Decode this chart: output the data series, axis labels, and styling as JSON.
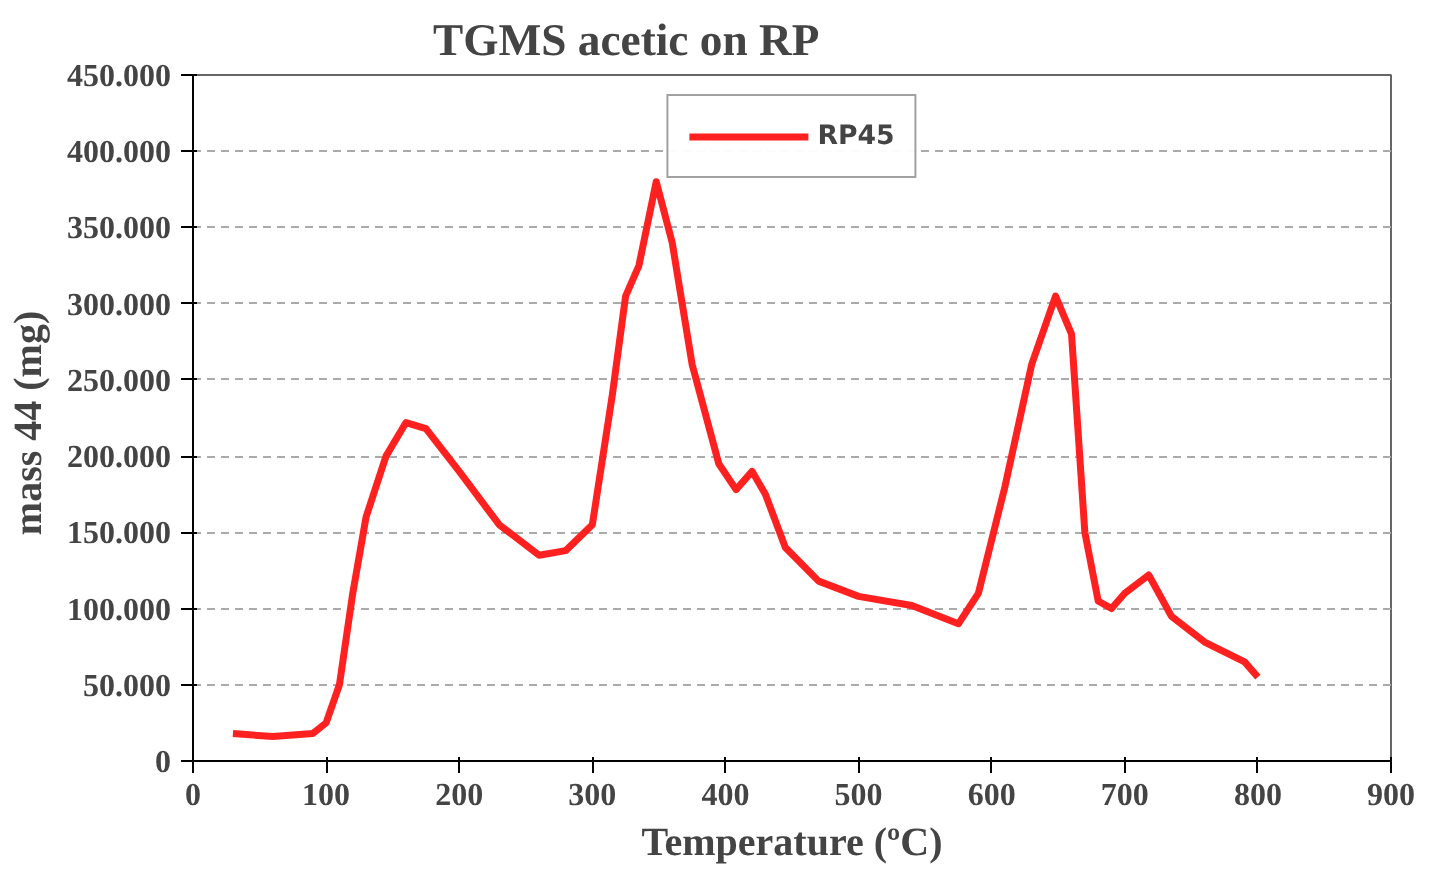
{
  "chart_data": {
    "type": "line",
    "title": "TGMS acetic on RP",
    "xlabel": "Temperature (ºC)",
    "ylabel": "mass  44 (mg)",
    "x": [
      30,
      60,
      90,
      100,
      110,
      120,
      130,
      145,
      160,
      175,
      200,
      230,
      260,
      280,
      300,
      315,
      325,
      335,
      348,
      360,
      375,
      395,
      408,
      420,
      430,
      445,
      470,
      500,
      540,
      575,
      590,
      610,
      630,
      648,
      660,
      670,
      680,
      690,
      700,
      718,
      735,
      760,
      790,
      800
    ],
    "series": [
      {
        "name": "RP45",
        "color": "#ff2020",
        "values": [
          18000,
          16000,
          18000,
          25000,
          50000,
          110000,
          160000,
          200000,
          222000,
          218000,
          190000,
          155000,
          135000,
          138000,
          155000,
          240000,
          305000,
          325000,
          380000,
          340000,
          260000,
          195000,
          178000,
          190000,
          175000,
          140000,
          118000,
          108000,
          102000,
          90000,
          110000,
          180000,
          260000,
          305000,
          280000,
          150000,
          105000,
          100000,
          110000,
          122000,
          95000,
          78000,
          65000,
          55000
        ]
      }
    ],
    "xlim": [
      0,
      900
    ],
    "xticks": [
      0,
      100,
      200,
      300,
      400,
      500,
      600,
      700,
      800,
      900
    ],
    "ylim": [
      0,
      450000
    ],
    "yticks": [
      {
        "value": 0,
        "label": "0"
      },
      {
        "value": 50000,
        "label": "50.000"
      },
      {
        "value": 100000,
        "label": "100.000"
      },
      {
        "value": 150000,
        "label": "150.000"
      },
      {
        "value": 200000,
        "label": "200.000"
      },
      {
        "value": 250000,
        "label": "250.000"
      },
      {
        "value": 300000,
        "label": "300.000"
      },
      {
        "value": 350000,
        "label": "350.000"
      },
      {
        "value": 400000,
        "label": "400.000"
      },
      {
        "value": 450000,
        "label": "450.000"
      }
    ],
    "grid": "y",
    "legend": "top",
    "marker": "none",
    "line_style": "solid"
  }
}
